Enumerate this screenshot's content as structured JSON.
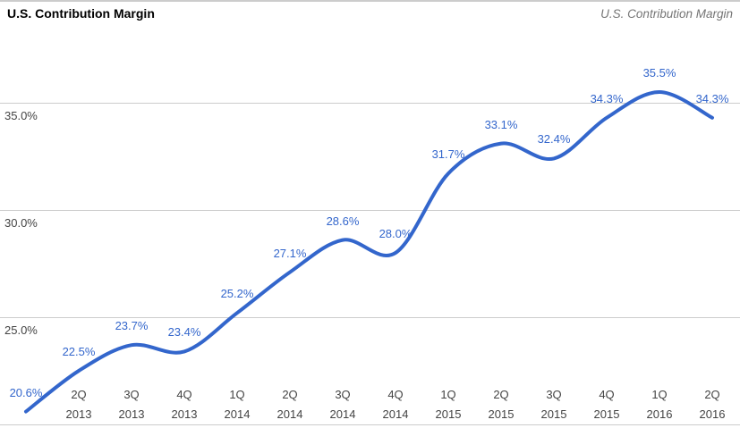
{
  "header": {
    "title": "U.S. Contribution Margin",
    "watermark": "U.S. Contribution Margin"
  },
  "chart_data": {
    "type": "line",
    "title": "U.S. Contribution Margin",
    "curve": "smooth",
    "legend": "none",
    "grid": true,
    "ylim": [
      20,
      37.5
    ],
    "y_ticks": [
      {
        "value": 35.0,
        "label": "35.0%"
      },
      {
        "value": 30.0,
        "label": "30.0%"
      },
      {
        "value": 25.0,
        "label": "25.0%"
      }
    ],
    "x_labels": [
      "",
      "2Q 2013",
      "3Q 2013",
      "4Q 2013",
      "1Q 2014",
      "2Q 2014",
      "3Q 2014",
      "4Q 2014",
      "1Q 2015",
      "2Q 2015",
      "3Q 2015",
      "4Q 2015",
      "1Q 2016",
      "2Q 2016"
    ],
    "series": [
      {
        "name": "U.S. Contribution Margin",
        "color": "#3366cc",
        "values": [
          20.6,
          22.5,
          23.7,
          23.4,
          25.2,
          27.1,
          28.6,
          28.0,
          31.7,
          33.1,
          32.4,
          34.3,
          35.5,
          34.3
        ]
      }
    ],
    "point_labels": [
      "20.6%",
      "22.5%",
      "23.7%",
      "23.4%",
      "25.2%",
      "27.1%",
      "28.6%",
      "28.0%",
      "31.7%",
      "33.1%",
      "32.4%",
      "34.3%",
      "35.5%",
      "34.3%"
    ]
  },
  "colors": {
    "line": "#3366cc",
    "point_label": "#3366cc",
    "gridline": "#cccccc",
    "axis_text": "#444444",
    "title_text": "#000000",
    "watermark_text": "#757575"
  }
}
